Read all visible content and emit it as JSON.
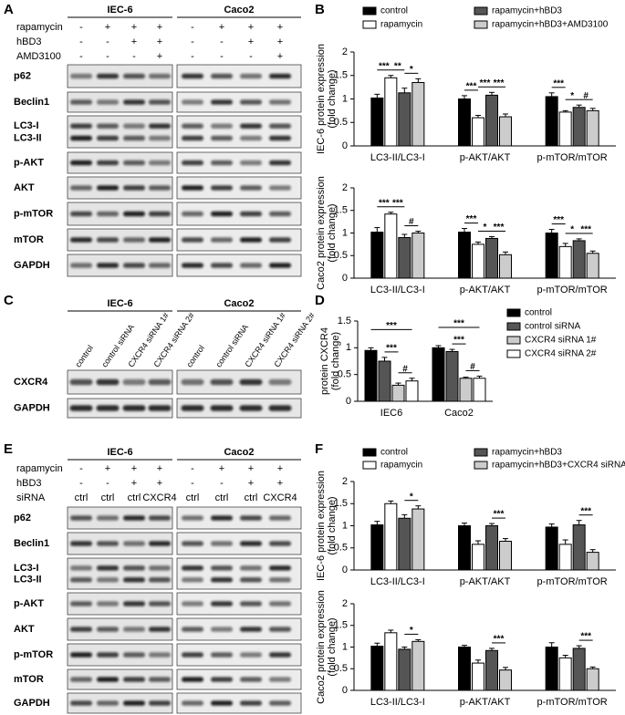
{
  "figure": {
    "panels": [
      "A",
      "B",
      "C",
      "D",
      "E",
      "F"
    ],
    "blots": [
      {
        "cell_lines": [
          "IEC-6",
          "Caco2"
        ],
        "conditions": [
          {
            "label": "rapamycin",
            "lanes": [
              "-",
              "+",
              "+",
              "+"
            ]
          },
          {
            "label": "hBD3",
            "lanes": [
              "-",
              "-",
              "+",
              "+"
            ]
          },
          {
            "label": "AMD3100",
            "lanes": [
              "-",
              "-",
              "-",
              "+"
            ]
          }
        ],
        "proteins": [
          "p62",
          "Beclin1",
          [
            "LC3-I",
            "LC3-II"
          ],
          "p-AKT",
          "AKT",
          "p-mTOR",
          "mTOR",
          "GAPDH"
        ]
      },
      {
        "cell_lines": [
          "IEC-6",
          "Caco2"
        ],
        "lanes": [
          "control",
          "control siRNA",
          "CXCR4 siRNA 1#",
          "CXCR4 siRNA 2#"
        ],
        "proteins": [
          "CXCR4",
          "GAPDH"
        ]
      },
      {
        "cell_lines": [
          "IEC-6",
          "Caco2"
        ],
        "conditions": [
          {
            "label": "rapamycin",
            "lanes": [
              "-",
              "+",
              "+",
              "+"
            ]
          },
          {
            "label": "hBD3",
            "lanes": [
              "-",
              "-",
              "+",
              "+"
            ]
          },
          {
            "label": "siRNA",
            "lanes": [
              "ctrl",
              "ctrl",
              "ctrl",
              "CXCR4"
            ]
          }
        ],
        "proteins": [
          "p62",
          "Beclin1",
          [
            "LC3-I",
            "LC3-II"
          ],
          "p-AKT",
          "AKT",
          "p-mTOR",
          "mTOR",
          "GAPDH"
        ]
      }
    ]
  },
  "chart_data": [
    {
      "type": "bar",
      "ylabel": [
        "IEC-6 protein expression",
        "(fold change)"
      ],
      "categories": [
        "LC3-II/LC3-I",
        "p-AKT/AKT",
        "p-mTOR/mTOR"
      ],
      "ylim": [
        0,
        2
      ],
      "yticks": [
        0,
        0.5,
        1,
        1.5,
        2
      ],
      "series": [
        {
          "name": "control",
          "color": "#000000",
          "values": [
            1.02,
            1.0,
            1.05
          ],
          "errors": [
            0.08,
            0.07,
            0.08
          ]
        },
        {
          "name": "rapamycin",
          "color": "#ffffff",
          "values": [
            1.45,
            0.6,
            0.72
          ],
          "errors": [
            0.05,
            0.05,
            0.03
          ]
        },
        {
          "name": "rapamycin+hBD3",
          "color": "#555555",
          "values": [
            1.13,
            1.08,
            0.82
          ],
          "errors": [
            0.1,
            0.06,
            0.05
          ]
        },
        {
          "name": "rapamycin+hBD3+AMD3100",
          "color": "#cccccc",
          "values": [
            1.35,
            0.62,
            0.75
          ],
          "errors": [
            0.08,
            0.06,
            0.05
          ]
        }
      ],
      "annotations": [
        "***",
        "**",
        "*",
        "***",
        "***",
        "***",
        "***",
        "*",
        "#"
      ]
    },
    {
      "type": "bar",
      "ylabel": [
        "Caco2 protein expression",
        "(fold change)"
      ],
      "categories": [
        "LC3-II/LC3-I",
        "p-AKT/AKT",
        "p-mTOR/mTOR"
      ],
      "ylim": [
        0,
        2
      ],
      "yticks": [
        0,
        0.5,
        1,
        1.5,
        2
      ],
      "series": [
        {
          "color": "#000000",
          "values": [
            1.02,
            1.02,
            1.0
          ],
          "errors": [
            0.1,
            0.08,
            0.08
          ]
        },
        {
          "color": "#ffffff",
          "values": [
            1.42,
            0.75,
            0.7
          ],
          "errors": [
            0.04,
            0.05,
            0.07
          ]
        },
        {
          "color": "#555555",
          "values": [
            0.9,
            0.88,
            0.83
          ],
          "errors": [
            0.07,
            0.04,
            0.04
          ]
        },
        {
          "color": "#cccccc",
          "values": [
            1.0,
            0.52,
            0.55
          ],
          "errors": [
            0.04,
            0.06,
            0.05
          ]
        }
      ],
      "annotations": [
        "***",
        "***",
        "#",
        "***",
        "*",
        "***",
        "***",
        "*",
        "***"
      ]
    },
    {
      "type": "bar",
      "ylabel": [
        "protein CXCR4",
        "(fold change)"
      ],
      "categories": [
        "IEC6",
        "Caco2"
      ],
      "ylim": [
        0,
        1.5
      ],
      "yticks": [
        0,
        0.5,
        1,
        1.5
      ],
      "series": [
        {
          "name": "control",
          "color": "#000000",
          "values": [
            0.95,
            1.0
          ],
          "errors": [
            0.05,
            0.04
          ]
        },
        {
          "name": "control siRNA",
          "color": "#555555",
          "values": [
            0.75,
            0.93
          ],
          "errors": [
            0.07,
            0.04
          ]
        },
        {
          "name": "CXCR4 siRNA 1#",
          "color": "#cccccc",
          "values": [
            0.3,
            0.43
          ],
          "errors": [
            0.04,
            0.02
          ]
        },
        {
          "name": "CXCR4 siRNA 2#",
          "color": "#ffffff",
          "values": [
            0.38,
            0.43
          ],
          "errors": [
            0.05,
            0.04
          ]
        }
      ],
      "annotations": [
        "***",
        "***",
        "#",
        "***",
        "***",
        "#"
      ]
    },
    {
      "type": "bar",
      "ylabel": [
        "IEC-6 protein expression",
        "(fold change)"
      ],
      "categories": [
        "LC3-II/LC3-I",
        "p-AKT/AKT",
        "p-mTOR/mTOR"
      ],
      "ylim": [
        0,
        2
      ],
      "yticks": [
        0,
        0.5,
        1,
        1.5,
        2
      ],
      "series": [
        {
          "name": "control",
          "color": "#000000",
          "values": [
            1.02,
            1.0,
            0.97
          ],
          "errors": [
            0.08,
            0.06,
            0.07
          ]
        },
        {
          "name": "rapamycin",
          "color": "#ffffff",
          "values": [
            1.5,
            0.58,
            0.58
          ],
          "errors": [
            0.06,
            0.08,
            0.1
          ]
        },
        {
          "name": "rapamycin+hBD3",
          "color": "#555555",
          "values": [
            1.17,
            1.0,
            1.02
          ],
          "errors": [
            0.08,
            0.05,
            0.1
          ]
        },
        {
          "name": "rapamycin+hBD3+CXCR4 siRNA",
          "color": "#cccccc",
          "values": [
            1.38,
            0.65,
            0.4
          ],
          "errors": [
            0.07,
            0.06,
            0.06
          ]
        }
      ],
      "annotations": [
        "*",
        "***",
        "***"
      ]
    },
    {
      "type": "bar",
      "ylabel": [
        "Caco2 protein expression",
        "(fold change)"
      ],
      "categories": [
        "LC3-II/LC3-I",
        "p-AKT/AKT",
        "p-mTOR/mTOR"
      ],
      "ylim": [
        0,
        2
      ],
      "yticks": [
        0,
        0.5,
        1,
        1.5,
        2
      ],
      "series": [
        {
          "color": "#000000",
          "values": [
            1.02,
            1.0,
            1.0
          ],
          "errors": [
            0.07,
            0.04,
            0.1
          ]
        },
        {
          "color": "#ffffff",
          "values": [
            1.33,
            0.63,
            0.75
          ],
          "errors": [
            0.06,
            0.07,
            0.06
          ]
        },
        {
          "color": "#555555",
          "values": [
            0.95,
            0.92,
            0.97
          ],
          "errors": [
            0.05,
            0.05,
            0.06
          ]
        },
        {
          "color": "#cccccc",
          "values": [
            1.13,
            0.47,
            0.5
          ],
          "errors": [
            0.04,
            0.06,
            0.04
          ]
        }
      ],
      "annotations": [
        "*",
        "***",
        "***"
      ]
    }
  ]
}
